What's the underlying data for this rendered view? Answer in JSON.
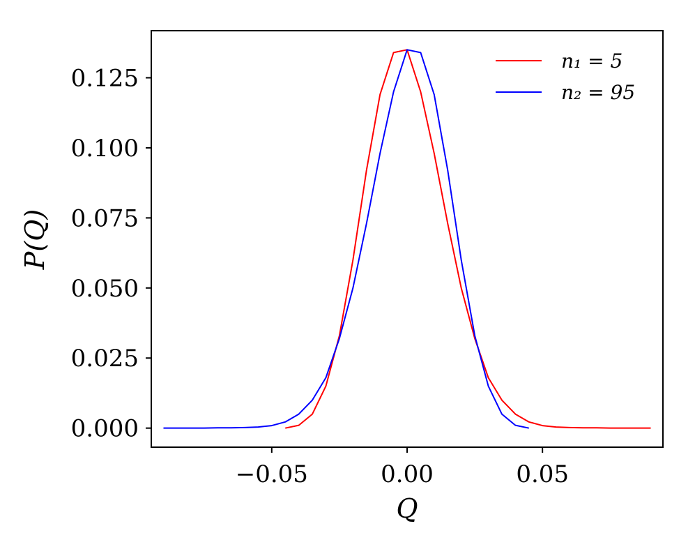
{
  "chart_data": {
    "type": "line",
    "title": "",
    "xlabel": "Q",
    "ylabel": "P(Q)",
    "xlim": [
      -0.0945,
      0.0945
    ],
    "ylim": [
      -0.0068,
      0.1418
    ],
    "x_ticks": [
      -0.05,
      0.0,
      0.05
    ],
    "x_tick_labels": [
      "−0.05",
      "0.00",
      "0.05"
    ],
    "y_ticks": [
      0.0,
      0.025,
      0.05,
      0.075,
      0.1,
      0.125
    ],
    "y_tick_labels": [
      "0.000",
      "0.025",
      "0.050",
      "0.075",
      "0.100",
      "0.125"
    ],
    "grid": false,
    "legend_position": "top-right",
    "series": [
      {
        "name": "n₁ = 5",
        "color": "#ff0000",
        "x": [
          -0.045,
          -0.04,
          -0.035,
          -0.03,
          -0.025,
          -0.02,
          -0.015,
          -0.01,
          -0.005,
          0.0,
          0.005,
          0.01,
          0.015,
          0.02,
          0.025,
          0.03,
          0.035,
          0.04,
          0.045,
          0.05,
          0.055,
          0.06,
          0.065,
          0.07,
          0.075,
          0.08,
          0.085,
          0.09
        ],
        "y": [
          0.0,
          0.001,
          0.005,
          0.015,
          0.033,
          0.06,
          0.092,
          0.119,
          0.134,
          0.135,
          0.12,
          0.098,
          0.073,
          0.05,
          0.032,
          0.018,
          0.01,
          0.005,
          0.0022,
          0.0009,
          0.0004,
          0.0002,
          0.0001,
          0.0001,
          0.0,
          0.0,
          0.0,
          0.0
        ]
      },
      {
        "name": "n₂ = 95",
        "color": "#0000ff",
        "x": [
          -0.09,
          -0.085,
          -0.08,
          -0.075,
          -0.07,
          -0.065,
          -0.06,
          -0.055,
          -0.05,
          -0.045,
          -0.04,
          -0.035,
          -0.03,
          -0.025,
          -0.02,
          -0.015,
          -0.01,
          -0.005,
          0.0,
          0.005,
          0.01,
          0.015,
          0.02,
          0.025,
          0.03,
          0.035,
          0.04,
          0.045
        ],
        "y": [
          0.0,
          0.0,
          0.0,
          0.0,
          0.0001,
          0.0001,
          0.0002,
          0.0004,
          0.0009,
          0.0022,
          0.005,
          0.01,
          0.018,
          0.032,
          0.05,
          0.073,
          0.098,
          0.12,
          0.135,
          0.134,
          0.119,
          0.092,
          0.06,
          0.033,
          0.015,
          0.005,
          0.001,
          0.0
        ]
      }
    ]
  }
}
